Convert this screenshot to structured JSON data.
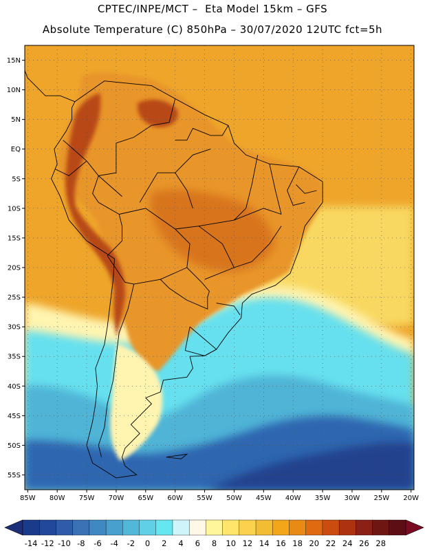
{
  "title": {
    "line1": "CPTEC/INPE/MCT –  Eta Model 15km – GFS",
    "line2": "Absolute Temperature (C) 850hPa – 30/07/2020 12UTC fct=5h"
  },
  "axes": {
    "lat_labels": [
      "15N",
      "10N",
      "5N",
      "EQ",
      "5S",
      "10S",
      "15S",
      "20S",
      "25S",
      "30S",
      "35S",
      "40S",
      "45S",
      "50S",
      "55S"
    ],
    "lon_labels": [
      "85W",
      "80W",
      "75W",
      "70W",
      "65W",
      "60W",
      "55W",
      "50W",
      "45W",
      "40W",
      "35W",
      "30W",
      "25W",
      "20W"
    ],
    "lat_range": [
      17.5,
      -57.5
    ],
    "lon_range": [
      -85.5,
      -19.5
    ],
    "grid": "dotted"
  },
  "colorbar": {
    "labels": [
      "-14",
      "-12",
      "-10",
      "-8",
      "-6",
      "-4",
      "-2",
      "0",
      "2",
      "4",
      "6",
      "8",
      "10",
      "12",
      "14",
      "16",
      "18",
      "20",
      "22",
      "24",
      "26",
      "28"
    ],
    "colors": [
      "#1a3a8a",
      "#21489a",
      "#2f5ca8",
      "#3a72b5",
      "#3f88c1",
      "#47a0cd",
      "#52b8d9",
      "#5fd0e6",
      "#66e6f0",
      "#cff5fb",
      "#fff8e6",
      "#fff59a",
      "#ffe66a",
      "#fbd24e",
      "#f2bc33",
      "#f2a71a",
      "#e88a14",
      "#e06a10",
      "#cc4b0e",
      "#ad3210",
      "#8a2016",
      "#6e1612",
      "#5c0e14"
    ],
    "underflow_color": "#1d2f78",
    "overflow_color": "#7a0c22"
  },
  "field_colors": {
    "ocean_warm": "#f2b43a",
    "ocean_tropical": "#eea52a",
    "land_warm": "#e8952a",
    "land_hot": "#d8741c",
    "andes_hot": "#b84a14",
    "subtropical_band": "#f8d860",
    "transition": "#fff4b0",
    "cold_front": "#66e0ee",
    "cold_mid": "#4fb4d6",
    "cold_deep": "#2f66b0",
    "polar": "#22428e",
    "border": "#000000",
    "frame": "#000000"
  }
}
